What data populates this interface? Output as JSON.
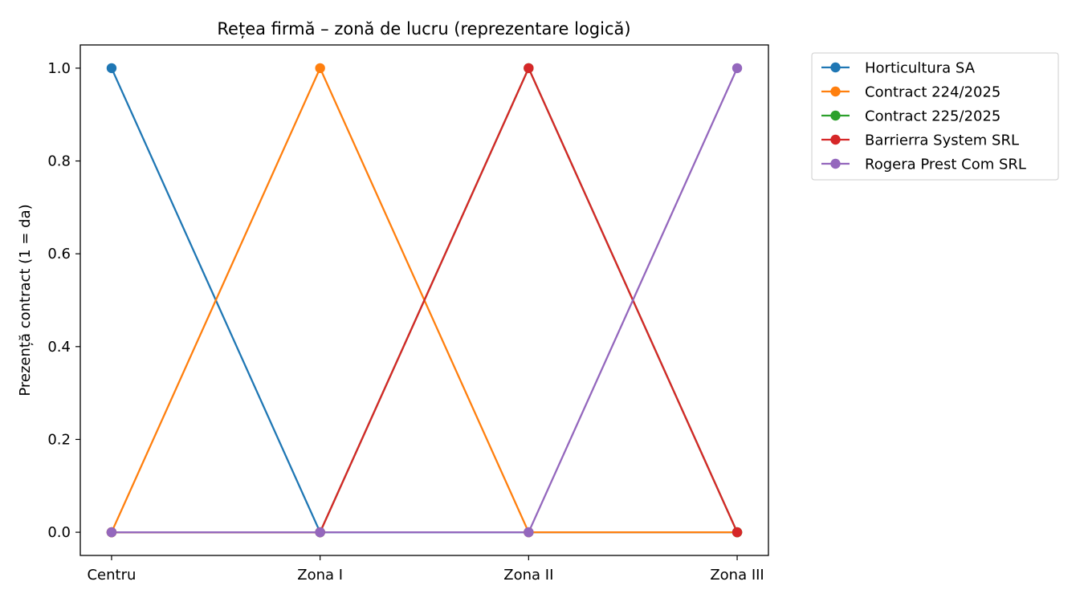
{
  "chart_data": {
    "type": "line",
    "title": "Rețea firmă – zonă de lucru (reprezentare logică)",
    "xlabel": "",
    "ylabel": "Prezență contract (1 = da)",
    "categories": [
      "Centru",
      "Zona I",
      "Zona II",
      "Zona III"
    ],
    "ylim": [
      -0.05,
      1.05
    ],
    "yticks": [
      "0.0",
      "0.2",
      "0.4",
      "0.6",
      "0.8",
      "1.0"
    ],
    "ytick_values": [
      0,
      0.2,
      0.4,
      0.6,
      0.8,
      1.0
    ],
    "grid": false,
    "legend_placement": "outside-top-right",
    "series": [
      {
        "name": "Horticultura SA",
        "color": "#1f77b4",
        "values": [
          1,
          0,
          0,
          0
        ]
      },
      {
        "name": "Contract 224/2025",
        "color": "#ff7f0e",
        "values": [
          0,
          1,
          0,
          0
        ]
      },
      {
        "name": "Contract 225/2025",
        "color": "#2ca02c",
        "values": [
          0,
          0,
          1,
          0
        ]
      },
      {
        "name": "Barrierra System SRL",
        "color": "#d62728",
        "values": [
          0,
          0,
          1,
          0
        ]
      },
      {
        "name": "Rogera Prest Com SRL",
        "color": "#9467bd",
        "values": [
          0,
          0,
          0,
          1
        ]
      }
    ]
  }
}
